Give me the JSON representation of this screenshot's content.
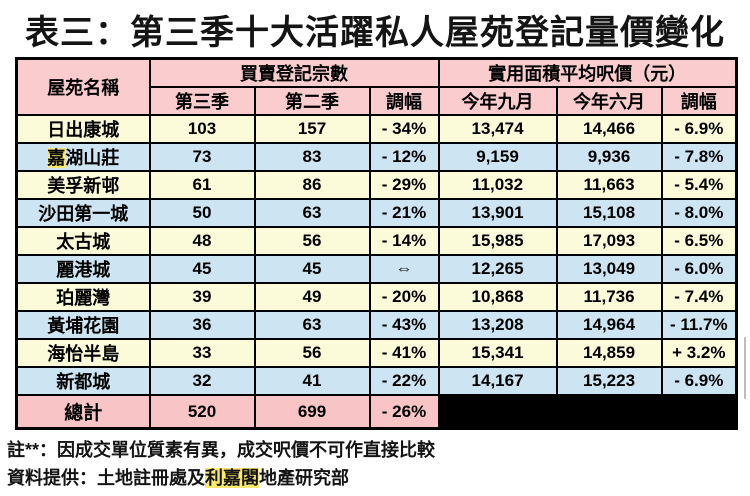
{
  "title": "表三：第三季十大活躍私人屋苑登記量價變化",
  "table": {
    "header": {
      "estate": "屋苑名稱",
      "group1": "買賣登記宗數",
      "group2": "實用面積平均呎價（元）",
      "sub": [
        "第三季",
        "第二季",
        "調幅",
        "今年九月",
        "今年六月",
        "調幅"
      ]
    },
    "rows": [
      {
        "name": {
          "pre": "日出康城",
          "hl": "",
          "post": ""
        },
        "bg": "yellow",
        "cells": [
          "103",
          "157",
          "- 34%",
          "13,474",
          "14,466",
          "- 6.9%"
        ]
      },
      {
        "name": {
          "pre": "",
          "hl": "嘉",
          "post": "湖山莊"
        },
        "bg": "blue",
        "cells": [
          "73",
          "83",
          "- 12%",
          "9,159",
          "9,936",
          "- 7.8%"
        ]
      },
      {
        "name": {
          "pre": "美孚新邨",
          "hl": "",
          "post": ""
        },
        "bg": "yellow",
        "cells": [
          "61",
          "86",
          "- 29%",
          "11,032",
          "11,663",
          "- 5.4%"
        ]
      },
      {
        "name": {
          "pre": "沙田第一城",
          "hl": "",
          "post": ""
        },
        "bg": "blue",
        "cells": [
          "50",
          "63",
          "- 21%",
          "13,901",
          "15,108",
          "- 8.0%"
        ]
      },
      {
        "name": {
          "pre": "太古城",
          "hl": "",
          "post": ""
        },
        "bg": "yellow",
        "cells": [
          "48",
          "56",
          "- 14%",
          "15,985",
          "17,093",
          "- 6.5%"
        ]
      },
      {
        "name": {
          "pre": "麗港城",
          "hl": "",
          "post": ""
        },
        "bg": "blue",
        "cells": [
          "45",
          "45",
          "⇔",
          "12,265",
          "13,049",
          "- 6.0%"
        ]
      },
      {
        "name": {
          "pre": "珀麗灣",
          "hl": "",
          "post": ""
        },
        "bg": "yellow",
        "cells": [
          "39",
          "49",
          "- 20%",
          "10,868",
          "11,736",
          "- 7.4%"
        ]
      },
      {
        "name": {
          "pre": "黃埔花園",
          "hl": "",
          "post": ""
        },
        "bg": "blue",
        "cells": [
          "36",
          "63",
          "- 43%",
          "13,208",
          "14,964",
          "- 11.7%"
        ]
      },
      {
        "name": {
          "pre": "海怡半島",
          "hl": "",
          "post": ""
        },
        "bg": "yellow",
        "cells": [
          "33",
          "56",
          "- 41%",
          "15,341",
          "14,859",
          "+ 3.2%"
        ]
      },
      {
        "name": {
          "pre": "新都城",
          "hl": "",
          "post": ""
        },
        "bg": "blue",
        "cells": [
          "32",
          "41",
          "- 22%",
          "14,167",
          "15,223",
          "- 6.9%"
        ]
      }
    ],
    "total": {
      "label": "總計",
      "cells": [
        "520",
        "699",
        "- 26%"
      ]
    }
  },
  "notes": {
    "line1": "註**：因成交單位質素有異，成交呎價不可作直接比較",
    "line2_pre": "資料提供：土地註冊處及",
    "line2_hl": "利嘉閣",
    "line2_post": "地產研究部"
  },
  "colors": {
    "header_pink": "#facccd",
    "total_pink": "#f8c4c5",
    "row_yellow": "#fbfad9",
    "row_blue": "#cde5f3",
    "highlight_yellow": "#fbe96e",
    "black": "#000000"
  }
}
